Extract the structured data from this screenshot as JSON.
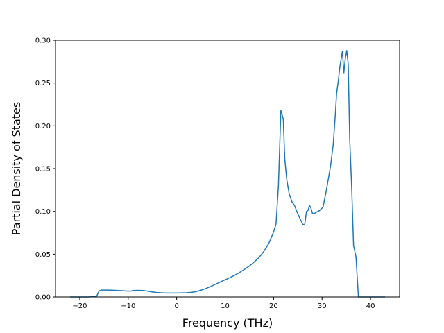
{
  "chart_data": {
    "type": "line",
    "title": "",
    "xlabel": "Frequency (THz)",
    "ylabel": "Partial Density of States",
    "xlim": [
      -25,
      46
    ],
    "ylim": [
      0,
      0.3
    ],
    "xticks": [
      -20,
      -10,
      0,
      10,
      20,
      30,
      40
    ],
    "yticks": [
      0.0,
      0.05,
      0.1,
      0.15,
      0.2,
      0.25,
      0.3
    ],
    "xtick_labels": [
      "−20",
      "−10",
      "0",
      "10",
      "20",
      "30",
      "40"
    ],
    "ytick_labels": [
      "0.00",
      "0.05",
      "0.10",
      "0.15",
      "0.20",
      "0.25",
      "0.30"
    ],
    "grid": false,
    "colors": {
      "line": "#1f77b4"
    },
    "series": [
      {
        "x": [
          -22,
          -20,
          -18,
          -16.5,
          -16.0,
          -15.5,
          -15,
          -14,
          -13,
          -12,
          -11,
          -10,
          -9.5,
          -9,
          -8,
          -7,
          -6,
          -5,
          -4,
          -3,
          -2,
          -1,
          0,
          1,
          2,
          3,
          4,
          5,
          6,
          7,
          8,
          9,
          10,
          11,
          12,
          13,
          14,
          15,
          16,
          17,
          18,
          19,
          19.5,
          20,
          20.5,
          21,
          21.5,
          22,
          22.3,
          22.7,
          23.2,
          23.8,
          24.3,
          25,
          25.5,
          26,
          26.4,
          26.8,
          27.1,
          27.4,
          27.7,
          28,
          28.3,
          28.8,
          29.5,
          30.2,
          30.8,
          31.3,
          31.8,
          32.3,
          32.7,
          33,
          33.3,
          33.7,
          34.2,
          34.5,
          34.8,
          35.1,
          35.4,
          35.7,
          36.1,
          36.5,
          37,
          37.5,
          40,
          43
        ],
        "y": [
          0.0,
          0.0,
          0.0,
          0.001,
          0.007,
          0.008,
          0.008,
          0.008,
          0.0078,
          0.0075,
          0.0072,
          0.0068,
          0.0068,
          0.0075,
          0.0077,
          0.0075,
          0.0068,
          0.0058,
          0.0052,
          0.0048,
          0.0046,
          0.0046,
          0.0046,
          0.0047,
          0.0049,
          0.0053,
          0.0062,
          0.0078,
          0.0098,
          0.0122,
          0.0148,
          0.0175,
          0.02,
          0.0226,
          0.0255,
          0.0287,
          0.0322,
          0.0362,
          0.0408,
          0.0462,
          0.0533,
          0.0625,
          0.069,
          0.076,
          0.085,
          0.13,
          0.218,
          0.208,
          0.162,
          0.138,
          0.121,
          0.111,
          0.107,
          0.097,
          0.091,
          0.085,
          0.084,
          0.1,
          0.101,
          0.107,
          0.104,
          0.098,
          0.097,
          0.099,
          0.101,
          0.105,
          0.122,
          0.138,
          0.155,
          0.178,
          0.21,
          0.238,
          0.25,
          0.27,
          0.287,
          0.262,
          0.279,
          0.288,
          0.272,
          0.185,
          0.13,
          0.06,
          0.047,
          0.0,
          0.0,
          0.0
        ]
      }
    ]
  }
}
